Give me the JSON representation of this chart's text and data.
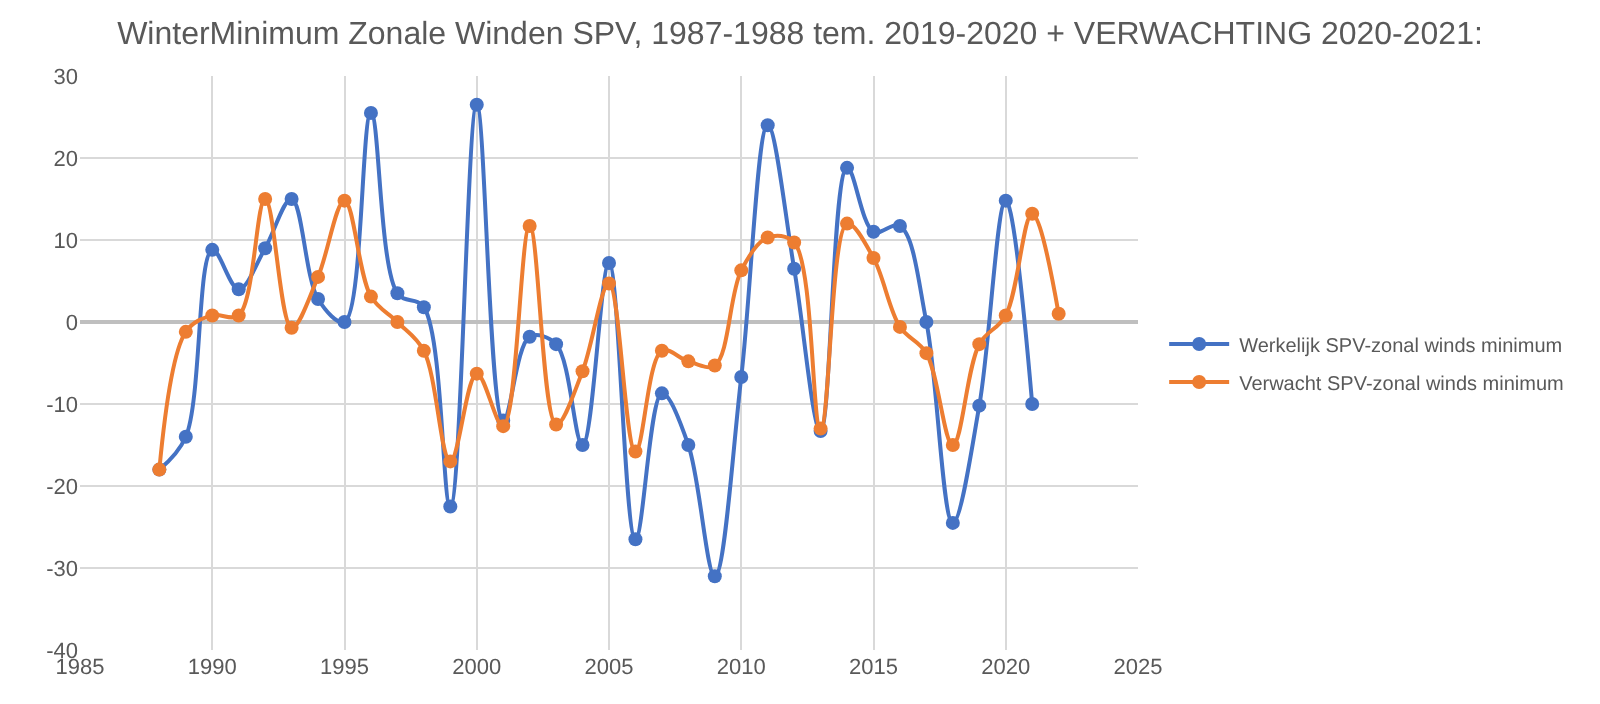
{
  "chart_data": {
    "type": "line",
    "title": "WinterMinimum Zonale Winden SPV, 1987-1988 tem. 2019-2020 + VERWACHTING 2020-2021:",
    "series": [
      {
        "name": "Werkelijk SPV-zonal winds minimum",
        "color": "#4472c4",
        "x": [
          1988,
          1989,
          1990,
          1991,
          1992,
          1993,
          1994,
          1995,
          1996,
          1997,
          1998,
          1999,
          2000,
          2001,
          2002,
          2003,
          2004,
          2005,
          2006,
          2007,
          2008,
          2009,
          2010,
          2011,
          2012,
          2013,
          2014,
          2015,
          2016,
          2017,
          2018,
          2019,
          2020,
          2021
        ],
        "values": [
          -18,
          -14,
          8.8,
          4,
          9,
          15,
          2.8,
          0,
          25.5,
          3.5,
          1.8,
          -22.5,
          26.5,
          -12,
          -1.8,
          -2.7,
          -15,
          7.2,
          -26.5,
          -8.7,
          -15,
          -31,
          -6.7,
          24,
          6.5,
          -13.3,
          18.8,
          11,
          11.7,
          0,
          -24.5,
          -10.2,
          14.8,
          -10
        ]
      },
      {
        "name": "Verwacht SPV-zonal winds minimum",
        "color": "#ed7d31",
        "x": [
          1988,
          1989,
          1990,
          1991,
          1992,
          1993,
          1994,
          1995,
          1996,
          1997,
          1998,
          1999,
          2000,
          2001,
          2002,
          2003,
          2004,
          2005,
          2006,
          2007,
          2008,
          2009,
          2010,
          2011,
          2012,
          2013,
          2014,
          2015,
          2016,
          2017,
          2018,
          2019,
          2020,
          2021,
          2022
        ],
        "values": [
          -18,
          -1.2,
          0.8,
          0.8,
          15,
          -0.7,
          5.5,
          14.8,
          3.1,
          0,
          -3.5,
          -17,
          -6.3,
          -12.7,
          11.7,
          -12.5,
          -6,
          4.7,
          -15.8,
          -3.5,
          -4.8,
          -5.3,
          6.3,
          10.3,
          9.7,
          -13,
          12,
          7.8,
          -0.6,
          -3.8,
          -15,
          -2.7,
          0.8,
          13.2,
          1
        ]
      }
    ],
    "xlim": [
      1985,
      2025
    ],
    "xticks": [
      1985,
      1990,
      1995,
      2000,
      2005,
      2010,
      2015,
      2020,
      2025
    ],
    "ylim": [
      -40,
      30
    ],
    "yticks": [
      -40,
      -30,
      -20,
      -10,
      0,
      10,
      20,
      30
    ],
    "grid": true,
    "legend": "right",
    "marker": "circle",
    "line_style": "solid"
  }
}
